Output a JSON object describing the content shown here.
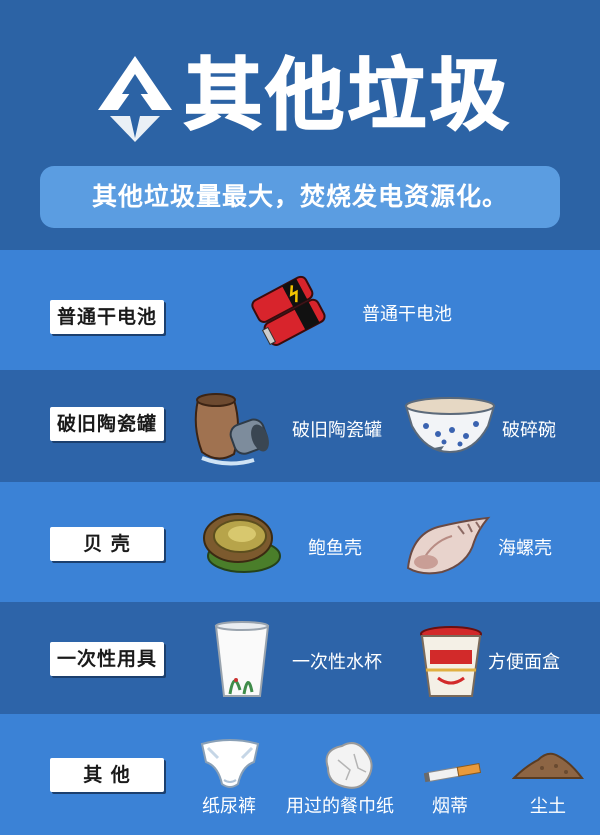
{
  "header": {
    "title": "其他垃圾",
    "slogan": "其他垃圾量最大，焚烧发电资源化。"
  },
  "rows": [
    {
      "category": "普通干电池",
      "items": [
        "普通干电池"
      ]
    },
    {
      "category": "破旧陶瓷罐",
      "items": [
        "破旧陶瓷罐",
        "破碎碗"
      ]
    },
    {
      "category": "贝 壳",
      "items": [
        "鲍鱼壳",
        "海螺壳"
      ]
    },
    {
      "category": "一次性用具",
      "items": [
        "一次性水杯",
        "方便面盒"
      ]
    },
    {
      "category": "其 他",
      "items": [
        "纸尿裤",
        "用过的餐巾纸",
        "烟蒂",
        "尘土"
      ]
    }
  ],
  "icons": [
    "recycle-arrow-icon",
    "battery-icon",
    "ceramic-jar-icon",
    "broken-bowl-icon",
    "abalone-shell-icon",
    "conch-shell-icon",
    "paper-cup-icon",
    "noodle-box-icon",
    "diaper-icon",
    "tissue-icon",
    "cigarette-butt-icon",
    "dust-pile-icon"
  ],
  "colors": {
    "background": "#2c63a5",
    "row_light": "#3b82d6",
    "row_dark": "#2d64a9",
    "slogan_bg": "#5b9de1",
    "label_bg": "#ffffff"
  }
}
